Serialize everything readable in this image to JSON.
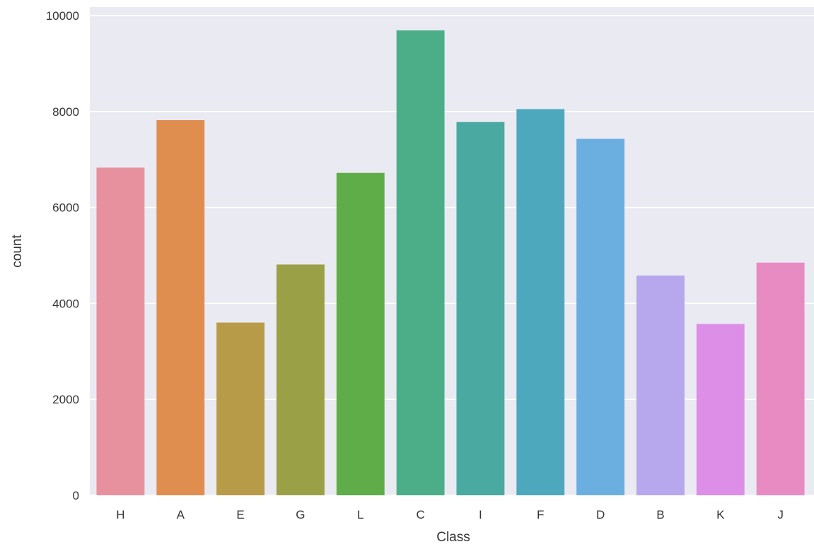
{
  "chart_data": {
    "type": "bar",
    "title": "",
    "xlabel": "Class",
    "ylabel": "count",
    "categories": [
      "H",
      "A",
      "E",
      "G",
      "L",
      "C",
      "I",
      "F",
      "D",
      "B",
      "K",
      "J"
    ],
    "values": [
      6830,
      7820,
      3600,
      4810,
      6720,
      9690,
      7780,
      8050,
      7430,
      4580,
      3570,
      4850
    ],
    "colors": [
      "#E8919E",
      "#E08E4F",
      "#B89B48",
      "#9AA045",
      "#5EAD48",
      "#4BAE89",
      "#4AA9A0",
      "#4DA8BE",
      "#6BAEE0",
      "#B7A7EC",
      "#DD8EE6",
      "#E78BC2"
    ],
    "ylim": [
      0,
      10000
    ],
    "yticks": [
      0,
      2000,
      4000,
      6000,
      8000,
      10000
    ],
    "grid": true,
    "background": "#EAEAF2",
    "gridColor": "#FFFFFF",
    "legend": "none"
  }
}
